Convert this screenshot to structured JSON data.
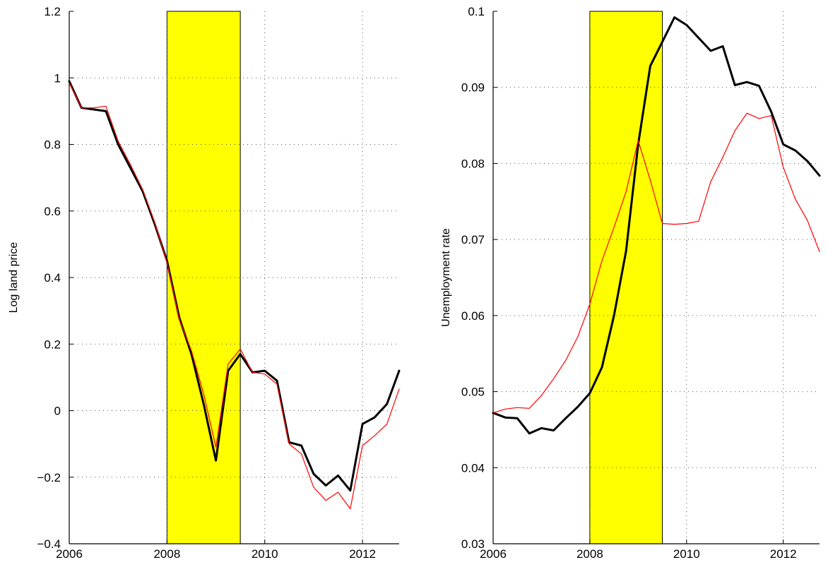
{
  "chart_data": [
    {
      "type": "line",
      "xlabel": "",
      "ylabel": "Log land price",
      "xlim": [
        2006,
        2012.75
      ],
      "ylim": [
        -0.4,
        1.2
      ],
      "xticks": [
        2006,
        2008,
        2010,
        2012
      ],
      "yticks": [
        -0.4,
        -0.2,
        0,
        0.2,
        0.4,
        0.6,
        0.8,
        1,
        1.2
      ],
      "xtick_labels": [
        "2006",
        "2008",
        "2010",
        "2012"
      ],
      "ytick_labels": [
        "−0.4",
        "−0.2",
        "0",
        "0.2",
        "0.4",
        "0.6",
        "0.8",
        "1",
        "1.2"
      ],
      "grid": true,
      "shaded_region": {
        "x0": 2008.0,
        "x1": 2009.5,
        "color": "#ffff00"
      },
      "series": [
        {
          "color": "#000000",
          "style": "thick",
          "x": [
            2006.0,
            2006.25,
            2006.5,
            2006.75,
            2007.0,
            2007.25,
            2007.5,
            2007.75,
            2008.0,
            2008.25,
            2008.5,
            2008.75,
            2009.0,
            2009.25,
            2009.5,
            2009.75,
            2010.0,
            2010.25,
            2010.5,
            2010.75,
            2011.0,
            2011.25,
            2011.5,
            2011.75,
            2012.0,
            2012.25,
            2012.5,
            2012.75
          ],
          "y": [
            0.99,
            0.91,
            0.905,
            0.9,
            0.8,
            0.73,
            0.66,
            0.56,
            0.45,
            0.28,
            0.17,
            0.02,
            -0.15,
            0.12,
            0.17,
            0.115,
            0.12,
            0.09,
            -0.095,
            -0.105,
            -0.19,
            -0.225,
            -0.195,
            -0.24,
            -0.04,
            -0.02,
            0.02,
            0.12
          ]
        },
        {
          "color": "#ff0000",
          "style": "thin",
          "x": [
            2006.0,
            2006.25,
            2006.5,
            2006.75,
            2007.0,
            2007.25,
            2007.5,
            2007.75,
            2008.0,
            2008.25,
            2008.5,
            2008.75,
            2009.0,
            2009.25,
            2009.5,
            2009.75,
            2010.0,
            2010.25,
            2010.5,
            2010.75,
            2011.0,
            2011.25,
            2011.5,
            2011.75,
            2012.0,
            2012.25,
            2012.5,
            2012.75
          ],
          "y": [
            0.985,
            0.91,
            0.91,
            0.915,
            0.81,
            0.74,
            0.665,
            0.565,
            0.445,
            0.275,
            0.18,
            0.05,
            -0.11,
            0.14,
            0.185,
            0.115,
            0.11,
            0.08,
            -0.1,
            -0.13,
            -0.23,
            -0.27,
            -0.245,
            -0.295,
            -0.105,
            -0.075,
            -0.04,
            0.065
          ]
        }
      ]
    },
    {
      "type": "line",
      "xlabel": "",
      "ylabel": "Unemployment rate",
      "xlim": [
        2006,
        2012.75
      ],
      "ylim": [
        0.03,
        0.1
      ],
      "xticks": [
        2006,
        2008,
        2010,
        2012
      ],
      "yticks": [
        0.03,
        0.04,
        0.05,
        0.06,
        0.07,
        0.08,
        0.09,
        0.1
      ],
      "xtick_labels": [
        "2006",
        "2008",
        "2010",
        "2012"
      ],
      "ytick_labels": [
        "0.03",
        "0.04",
        "0.05",
        "0.06",
        "0.07",
        "0.08",
        "0.09",
        "0.1"
      ],
      "grid": true,
      "shaded_region": {
        "x0": 2008.0,
        "x1": 2009.5,
        "color": "#ffff00"
      },
      "series": [
        {
          "color": "#000000",
          "style": "thick",
          "x": [
            2006.0,
            2006.25,
            2006.5,
            2006.75,
            2007.0,
            2007.25,
            2007.5,
            2007.75,
            2008.0,
            2008.25,
            2008.5,
            2008.75,
            2009.0,
            2009.25,
            2009.5,
            2009.75,
            2010.0,
            2010.25,
            2010.5,
            2010.75,
            2011.0,
            2011.25,
            2011.5,
            2011.75,
            2012.0,
            2012.25,
            2012.5,
            2012.75
          ],
          "y": [
            0.0472,
            0.0466,
            0.0465,
            0.0445,
            0.0452,
            0.0449,
            0.0465,
            0.048,
            0.0498,
            0.0532,
            0.06,
            0.0685,
            0.0825,
            0.0928,
            0.096,
            0.0992,
            0.0982,
            0.0965,
            0.0948,
            0.0954,
            0.0903,
            0.0907,
            0.0902,
            0.0868,
            0.0825,
            0.0817,
            0.0803,
            0.0784
          ]
        },
        {
          "color": "#ff0000",
          "style": "thin",
          "x": [
            2006.0,
            2006.25,
            2006.5,
            2006.75,
            2007.0,
            2007.25,
            2007.5,
            2007.75,
            2008.0,
            2008.25,
            2008.5,
            2008.75,
            2009.0,
            2009.25,
            2009.5,
            2009.75,
            2010.0,
            2010.25,
            2010.5,
            2010.75,
            2011.0,
            2011.25,
            2011.5,
            2011.75,
            2012.0,
            2012.25,
            2012.5,
            2012.75
          ],
          "y": [
            0.0472,
            0.0477,
            0.0479,
            0.0478,
            0.0495,
            0.0517,
            0.0541,
            0.0572,
            0.0615,
            0.0672,
            0.0716,
            0.0763,
            0.083,
            0.0778,
            0.0721,
            0.072,
            0.0721,
            0.0724,
            0.0776,
            0.0808,
            0.0843,
            0.0866,
            0.0859,
            0.0863,
            0.0795,
            0.0753,
            0.0725,
            0.0684
          ]
        }
      ]
    }
  ],
  "colors": {
    "shade": "#ffff00",
    "shade_edge": "#000000",
    "grid": "#555555",
    "background": "#ffffff"
  }
}
